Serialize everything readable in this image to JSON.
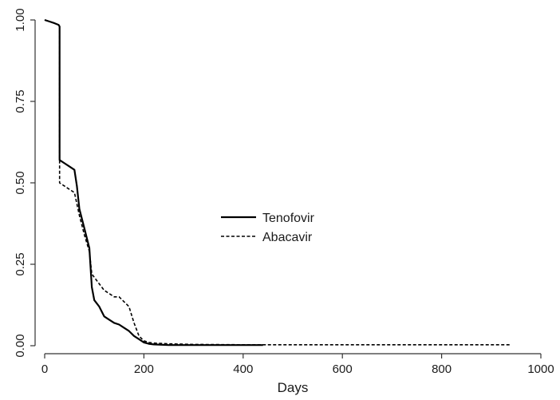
{
  "chart_data": {
    "type": "line",
    "title": "",
    "xlabel": "Days",
    "ylabel": "",
    "xlim": [
      0,
      1000
    ],
    "ylim": [
      0,
      1
    ],
    "xticks": [
      0,
      200,
      400,
      600,
      800,
      1000
    ],
    "yticks": [
      0,
      0.25,
      0.5,
      0.75,
      1
    ],
    "xtick_labels": [
      "0",
      "200",
      "400",
      "600",
      "800",
      "1000"
    ],
    "ytick_labels": [
      "0.00",
      "0.25",
      "0.50",
      "0.75",
      "1.00"
    ],
    "grid": false,
    "legend_position": "center",
    "series": [
      {
        "name": "Tenofovir",
        "line_style": "solid",
        "color": "#000000",
        "x": [
          0,
          10,
          20,
          28,
          30,
          30,
          40,
          50,
          60,
          65,
          70,
          80,
          90,
          95,
          100,
          110,
          120,
          130,
          140,
          150,
          160,
          170,
          180,
          190,
          200,
          210,
          220,
          250,
          300,
          350,
          400,
          440
        ],
        "y": [
          1.0,
          0.995,
          0.99,
          0.985,
          0.98,
          0.57,
          0.56,
          0.55,
          0.54,
          0.49,
          0.42,
          0.36,
          0.3,
          0.18,
          0.14,
          0.12,
          0.09,
          0.08,
          0.07,
          0.065,
          0.055,
          0.045,
          0.03,
          0.02,
          0.01,
          0.006,
          0.004,
          0.002,
          0.002,
          0.002,
          0.002,
          0.002
        ]
      },
      {
        "name": "Abacavir",
        "line_style": "dashed",
        "color": "#000000",
        "x": [
          0,
          10,
          20,
          28,
          30,
          30,
          40,
          50,
          60,
          70,
          80,
          90,
          95,
          100,
          110,
          120,
          130,
          140,
          150,
          160,
          170,
          180,
          190,
          200,
          210,
          220,
          250,
          300,
          400,
          500,
          600,
          700,
          800,
          900,
          940
        ],
        "y": [
          1.0,
          0.995,
          0.99,
          0.985,
          0.98,
          0.5,
          0.49,
          0.48,
          0.47,
          0.4,
          0.34,
          0.29,
          0.22,
          0.21,
          0.19,
          0.17,
          0.16,
          0.15,
          0.15,
          0.135,
          0.12,
          0.07,
          0.03,
          0.015,
          0.01,
          0.008,
          0.006,
          0.004,
          0.003,
          0.003,
          0.003,
          0.003,
          0.003,
          0.003,
          0.003
        ]
      }
    ]
  }
}
